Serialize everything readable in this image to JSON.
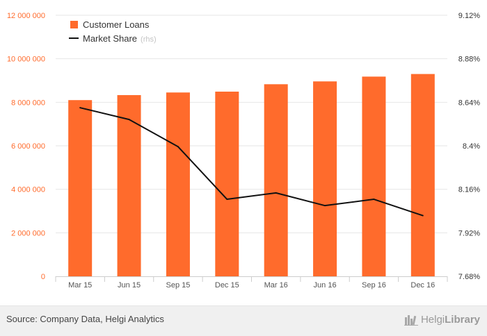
{
  "colors": {
    "bar": "#ff6b2c",
    "line": "#111111",
    "left_axis_text": "#ff6b2c",
    "grid": "#e6e6e6",
    "footer_bg": "#f0f0f0"
  },
  "chart_data": {
    "type": "bar",
    "categories": [
      "Mar 15",
      "Jun 15",
      "Sep 15",
      "Dec 15",
      "Mar 16",
      "Jun 16",
      "Sep 16",
      "Dec 16"
    ],
    "series": [
      {
        "name": "Customer Loans",
        "type": "bar",
        "axis": "left",
        "values": [
          8100000,
          8330000,
          8450000,
          8490000,
          8830000,
          8960000,
          9180000,
          9300000
        ]
      },
      {
        "name": "Market Share",
        "suffix": "(rhs)",
        "type": "line",
        "axis": "right",
        "values": [
          8.61,
          8.545,
          8.395,
          8.105,
          8.14,
          8.07,
          8.105,
          8.015
        ]
      }
    ],
    "left_axis": {
      "min": 0,
      "max": 12000000,
      "ticks": [
        0,
        2000000,
        4000000,
        6000000,
        8000000,
        10000000,
        12000000
      ],
      "tick_labels": [
        "0",
        "2 000 000",
        "4 000 000",
        "6 000 000",
        "8 000 000",
        "10 000 000",
        "12 000 000"
      ]
    },
    "right_axis": {
      "min": 7.68,
      "max": 9.12,
      "ticks": [
        7.68,
        7.92,
        8.16,
        8.4,
        8.64,
        8.88,
        9.12
      ],
      "tick_labels": [
        "7.68%",
        "7.92%",
        "8.16%",
        "8.4%",
        "8.64%",
        "8.88%",
        "9.12%"
      ]
    },
    "grid": true,
    "legend_position": "top-left"
  },
  "footer": {
    "source": "Source: Company Data, Helgi Analytics",
    "logo_light": "Helgi",
    "logo_strong": "Library"
  }
}
